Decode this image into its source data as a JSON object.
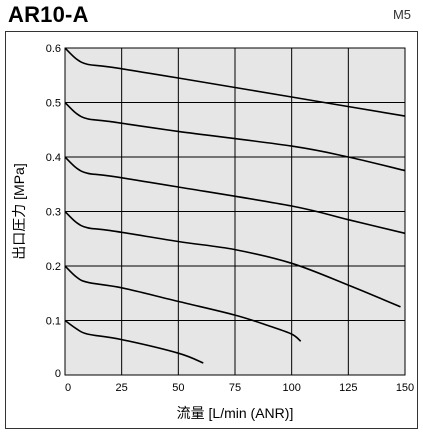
{
  "header": {
    "model": "AR10-A",
    "port": "M5"
  },
  "colors": {
    "plot_background": "#e6e6e6",
    "grid": "#000000",
    "curve": "#000000"
  },
  "chart_data": {
    "type": "line",
    "title": "AR10-A",
    "subtitle": "M5",
    "xlabel": "流量 [L/min (ANR)]",
    "ylabel": "出口圧力 [MPa]",
    "xlim": [
      0,
      150
    ],
    "ylim": [
      0,
      0.6
    ],
    "x_ticks": [
      "0",
      "25",
      "50",
      "75",
      "100",
      "125",
      "150"
    ],
    "y_ticks": [
      "0",
      "0.1",
      "0.2",
      "0.3",
      "0.4",
      "0.5",
      "0.6"
    ],
    "grid": true,
    "series": [
      {
        "x": [
          0,
          5,
          10,
          20,
          50,
          100,
          150
        ],
        "y": [
          0.6,
          0.58,
          0.57,
          0.565,
          0.545,
          0.51,
          0.475
        ]
      },
      {
        "x": [
          0,
          5,
          10,
          20,
          50,
          100,
          125,
          150
        ],
        "y": [
          0.5,
          0.48,
          0.47,
          0.465,
          0.447,
          0.42,
          0.4,
          0.375
        ]
      },
      {
        "x": [
          0,
          5,
          10,
          20,
          50,
          100,
          125,
          150
        ],
        "y": [
          0.4,
          0.38,
          0.37,
          0.365,
          0.345,
          0.31,
          0.285,
          0.26
        ]
      },
      {
        "x": [
          0,
          5,
          10,
          20,
          50,
          75,
          100,
          125,
          148
        ],
        "y": [
          0.3,
          0.28,
          0.27,
          0.265,
          0.245,
          0.23,
          0.205,
          0.165,
          0.125
        ]
      },
      {
        "x": [
          0,
          5,
          10,
          25,
          50,
          75,
          90,
          100,
          104
        ],
        "y": [
          0.2,
          0.18,
          0.17,
          0.16,
          0.135,
          0.11,
          0.09,
          0.075,
          0.062
        ]
      },
      {
        "x": [
          0,
          5,
          10,
          25,
          50,
          61
        ],
        "y": [
          0.1,
          0.085,
          0.075,
          0.065,
          0.04,
          0.022
        ]
      }
    ]
  }
}
